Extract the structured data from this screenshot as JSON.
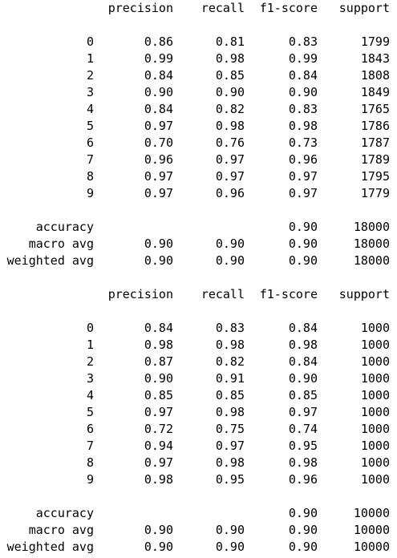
{
  "reports": [
    {
      "headers": {
        "precision": "precision",
        "recall": "recall",
        "f1": "f1-score",
        "support": "support"
      },
      "rows": [
        {
          "label": "0",
          "precision": "0.86",
          "recall": "0.81",
          "f1": "0.83",
          "support": "1799"
        },
        {
          "label": "1",
          "precision": "0.99",
          "recall": "0.98",
          "f1": "0.99",
          "support": "1843"
        },
        {
          "label": "2",
          "precision": "0.84",
          "recall": "0.85",
          "f1": "0.84",
          "support": "1808"
        },
        {
          "label": "3",
          "precision": "0.90",
          "recall": "0.90",
          "f1": "0.90",
          "support": "1849"
        },
        {
          "label": "4",
          "precision": "0.84",
          "recall": "0.82",
          "f1": "0.83",
          "support": "1765"
        },
        {
          "label": "5",
          "precision": "0.97",
          "recall": "0.98",
          "f1": "0.98",
          "support": "1786"
        },
        {
          "label": "6",
          "precision": "0.70",
          "recall": "0.76",
          "f1": "0.73",
          "support": "1787"
        },
        {
          "label": "7",
          "precision": "0.96",
          "recall": "0.97",
          "f1": "0.96",
          "support": "1789"
        },
        {
          "label": "8",
          "precision": "0.97",
          "recall": "0.97",
          "f1": "0.97",
          "support": "1795"
        },
        {
          "label": "9",
          "precision": "0.97",
          "recall": "0.96",
          "f1": "0.97",
          "support": "1779"
        }
      ],
      "accuracy": {
        "label": "accuracy",
        "f1": "0.90",
        "support": "18000"
      },
      "macro": {
        "label": "macro avg",
        "precision": "0.90",
        "recall": "0.90",
        "f1": "0.90",
        "support": "18000"
      },
      "weighted": {
        "label": "weighted avg",
        "precision": "0.90",
        "recall": "0.90",
        "f1": "0.90",
        "support": "18000"
      }
    },
    {
      "headers": {
        "precision": "precision",
        "recall": "recall",
        "f1": "f1-score",
        "support": "support"
      },
      "rows": [
        {
          "label": "0",
          "precision": "0.84",
          "recall": "0.83",
          "f1": "0.84",
          "support": "1000"
        },
        {
          "label": "1",
          "precision": "0.98",
          "recall": "0.98",
          "f1": "0.98",
          "support": "1000"
        },
        {
          "label": "2",
          "precision": "0.87",
          "recall": "0.82",
          "f1": "0.84",
          "support": "1000"
        },
        {
          "label": "3",
          "precision": "0.90",
          "recall": "0.91",
          "f1": "0.90",
          "support": "1000"
        },
        {
          "label": "4",
          "precision": "0.85",
          "recall": "0.85",
          "f1": "0.85",
          "support": "1000"
        },
        {
          "label": "5",
          "precision": "0.97",
          "recall": "0.98",
          "f1": "0.97",
          "support": "1000"
        },
        {
          "label": "6",
          "precision": "0.72",
          "recall": "0.75",
          "f1": "0.74",
          "support": "1000"
        },
        {
          "label": "7",
          "precision": "0.94",
          "recall": "0.97",
          "f1": "0.95",
          "support": "1000"
        },
        {
          "label": "8",
          "precision": "0.97",
          "recall": "0.98",
          "f1": "0.98",
          "support": "1000"
        },
        {
          "label": "9",
          "precision": "0.98",
          "recall": "0.95",
          "f1": "0.96",
          "support": "1000"
        }
      ],
      "accuracy": {
        "label": "accuracy",
        "f1": "0.90",
        "support": "10000"
      },
      "macro": {
        "label": "macro avg",
        "precision": "0.90",
        "recall": "0.90",
        "f1": "0.90",
        "support": "10000"
      },
      "weighted": {
        "label": "weighted avg",
        "precision": "0.90",
        "recall": "0.90",
        "f1": "0.90",
        "support": "10000"
      }
    }
  ]
}
